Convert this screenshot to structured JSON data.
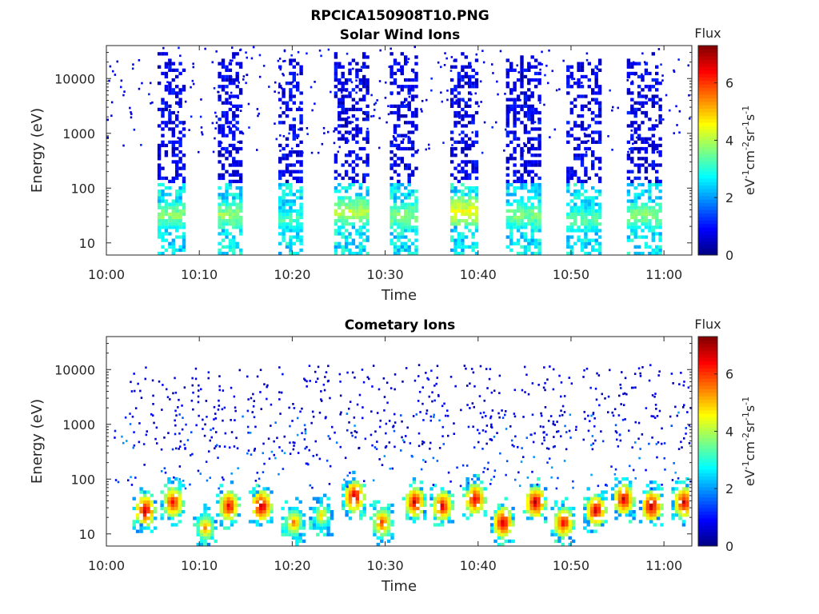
{
  "figure": {
    "filename_title": "RPCICA150908T10.PNG"
  },
  "colors": {
    "axis": "#262626",
    "background": "#ffffff",
    "colormap": "jet"
  },
  "chart_data": [
    {
      "type": "heatmap",
      "title": "Solar Wind Ions",
      "xlabel": "Time",
      "ylabel": "Energy (eV)",
      "y_scale": "log",
      "xlim": [
        "10:00",
        "11:03"
      ],
      "ylim": [
        6,
        40000
      ],
      "x_ticks": [
        "10:00",
        "10:10",
        "10:20",
        "10:30",
        "10:40",
        "10:50",
        "11:00"
      ],
      "y_ticks": [
        "10",
        "100",
        "1000",
        "10000"
      ],
      "colorbar": {
        "title": "Flux",
        "label": "eV-1cm-2sr-1s-1",
        "label_parts": [
          {
            "t": "eV"
          },
          {
            "sup": "-1"
          },
          {
            "t": "cm"
          },
          {
            "sup": "-2"
          },
          {
            "t": "sr"
          },
          {
            "sup": "-1"
          },
          {
            "t": "s"
          },
          {
            "sup": "-1"
          }
        ],
        "range": [
          0,
          7.3
        ],
        "ticks": [
          "0",
          "2",
          "4",
          "6"
        ]
      },
      "sweeps": [
        {
          "t_start": "10:05:30",
          "t_end": "10:08:30",
          "peak_energy_eV": 30,
          "peak_flux": 3.5
        },
        {
          "t_start": "10:12:00",
          "t_end": "10:14:30",
          "peak_energy_eV": 30,
          "peak_flux": 3.6
        },
        {
          "t_start": "10:18:30",
          "t_end": "10:21:00",
          "peak_energy_eV": 25,
          "peak_flux": 3.0
        },
        {
          "t_start": "10:24:30",
          "t_end": "10:28:00",
          "peak_energy_eV": 35,
          "peak_flux": 3.8
        },
        {
          "t_start": "10:30:30",
          "t_end": "10:33:30",
          "peak_energy_eV": 30,
          "peak_flux": 3.5
        },
        {
          "t_start": "10:37:00",
          "t_end": "10:40:00",
          "peak_energy_eV": 35,
          "peak_flux": 4.2
        },
        {
          "t_start": "10:43:00",
          "t_end": "10:46:30",
          "peak_energy_eV": 30,
          "peak_flux": 3.4
        },
        {
          "t_start": "10:49:30",
          "t_end": "10:53:00",
          "peak_energy_eV": 25,
          "peak_flux": 3.2
        },
        {
          "t_start": "10:56:00",
          "t_end": "10:59:30",
          "peak_energy_eV": 30,
          "peak_flux": 3.5
        }
      ]
    },
    {
      "type": "heatmap",
      "title": "Cometary Ions",
      "xlabel": "Time",
      "ylabel": "Energy (eV)",
      "y_scale": "log",
      "xlim": [
        "10:00",
        "11:03"
      ],
      "ylim": [
        6,
        40000
      ],
      "x_ticks": [
        "10:00",
        "10:10",
        "10:20",
        "10:30",
        "10:40",
        "10:50",
        "11:00"
      ],
      "y_ticks": [
        "10",
        "100",
        "1000",
        "10000"
      ],
      "colorbar": {
        "title": "Flux",
        "label": "eV-1cm-2sr-1s-1",
        "label_parts": [
          {
            "t": "eV"
          },
          {
            "sup": "-1"
          },
          {
            "t": "cm"
          },
          {
            "sup": "-2"
          },
          {
            "t": "sr"
          },
          {
            "sup": "-1"
          },
          {
            "t": "s"
          },
          {
            "sup": "-1"
          }
        ],
        "range": [
          0,
          7.3
        ],
        "ticks": [
          "0",
          "2",
          "4",
          "6"
        ]
      },
      "blobs": [
        {
          "t": "10:04:00",
          "energy_eV": 25,
          "peak_flux": 6.8
        },
        {
          "t": "10:07:00",
          "energy_eV": 35,
          "peak_flux": 6.5
        },
        {
          "t": "10:10:30",
          "energy_eV": 12,
          "peak_flux": 5.5
        },
        {
          "t": "10:13:00",
          "energy_eV": 30,
          "peak_flux": 6.6
        },
        {
          "t": "10:16:30",
          "energy_eV": 30,
          "peak_flux": 6.9
        },
        {
          "t": "10:20:00",
          "energy_eV": 15,
          "peak_flux": 5.5
        },
        {
          "t": "10:23:00",
          "energy_eV": 20,
          "peak_flux": 5.0
        },
        {
          "t": "10:26:30",
          "energy_eV": 45,
          "peak_flux": 6.8
        },
        {
          "t": "10:29:30",
          "energy_eV": 15,
          "peak_flux": 6.0
        },
        {
          "t": "10:33:00",
          "energy_eV": 35,
          "peak_flux": 6.7
        },
        {
          "t": "10:36:00",
          "energy_eV": 30,
          "peak_flux": 6.6
        },
        {
          "t": "10:39:30",
          "energy_eV": 40,
          "peak_flux": 6.7
        },
        {
          "t": "10:42:30",
          "energy_eV": 15,
          "peak_flux": 6.8
        },
        {
          "t": "10:46:00",
          "energy_eV": 35,
          "peak_flux": 6.9
        },
        {
          "t": "10:49:00",
          "energy_eV": 15,
          "peak_flux": 6.5
        },
        {
          "t": "10:52:30",
          "energy_eV": 25,
          "peak_flux": 6.7
        },
        {
          "t": "10:55:30",
          "energy_eV": 40,
          "peak_flux": 6.8
        },
        {
          "t": "10:58:30",
          "energy_eV": 30,
          "peak_flux": 6.9
        },
        {
          "t": "11:02:00",
          "energy_eV": 35,
          "peak_flux": 6.7
        }
      ]
    }
  ]
}
